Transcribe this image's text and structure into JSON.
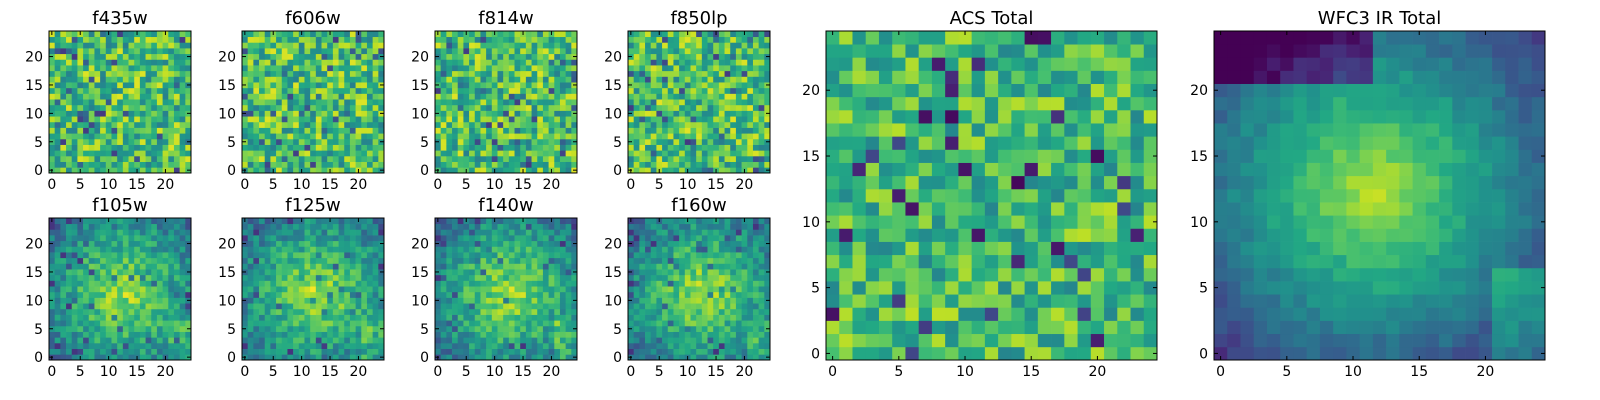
{
  "figure": {
    "background": "#ffffff",
    "colormap": "viridis"
  },
  "chart_data": [
    {
      "type": "heatmap",
      "title": "f435w",
      "grid_size": 25,
      "xlim": [
        0,
        24
      ],
      "ylim": [
        0,
        24
      ],
      "xticks": [
        0,
        5,
        10,
        15,
        20
      ],
      "yticks": [
        0,
        5,
        10,
        15,
        20
      ],
      "pattern": "noise",
      "seed": 11,
      "color_range": [
        0.12,
        1.0
      ]
    },
    {
      "type": "heatmap",
      "title": "f606w",
      "grid_size": 25,
      "xlim": [
        0,
        24
      ],
      "ylim": [
        0,
        24
      ],
      "xticks": [
        0,
        5,
        10,
        15,
        20
      ],
      "yticks": [
        0,
        5,
        10,
        15,
        20
      ],
      "pattern": "noise",
      "seed": 23,
      "color_range": [
        0.12,
        1.0
      ]
    },
    {
      "type": "heatmap",
      "title": "f814w",
      "grid_size": 25,
      "xlim": [
        0,
        24
      ],
      "ylim": [
        0,
        24
      ],
      "xticks": [
        0,
        5,
        10,
        15,
        20
      ],
      "yticks": [
        0,
        5,
        10,
        15,
        20
      ],
      "pattern": "noise",
      "seed": 37,
      "color_range": [
        0.12,
        1.0
      ]
    },
    {
      "type": "heatmap",
      "title": "f850lp",
      "grid_size": 25,
      "xlim": [
        0,
        24
      ],
      "ylim": [
        0,
        24
      ],
      "xticks": [
        0,
        5,
        10,
        15,
        20
      ],
      "yticks": [
        0,
        5,
        10,
        15,
        20
      ],
      "pattern": "noise",
      "seed": 41,
      "color_range": [
        0.12,
        1.0
      ]
    },
    {
      "type": "heatmap",
      "title": "f105w",
      "grid_size": 25,
      "xlim": [
        0,
        24
      ],
      "ylim": [
        0,
        24
      ],
      "xticks": [
        0,
        5,
        10,
        15,
        20
      ],
      "yticks": [
        0,
        5,
        10,
        15,
        20
      ],
      "pattern": "blob",
      "seed": 53,
      "color_range": [
        0.15,
        1.0
      ]
    },
    {
      "type": "heatmap",
      "title": "f125w",
      "grid_size": 25,
      "xlim": [
        0,
        24
      ],
      "ylim": [
        0,
        24
      ],
      "xticks": [
        0,
        5,
        10,
        15,
        20
      ],
      "yticks": [
        0,
        5,
        10,
        15,
        20
      ],
      "pattern": "blob",
      "seed": 67,
      "color_range": [
        0.15,
        1.0
      ]
    },
    {
      "type": "heatmap",
      "title": "f140w",
      "grid_size": 25,
      "xlim": [
        0,
        24
      ],
      "ylim": [
        0,
        24
      ],
      "xticks": [
        0,
        5,
        10,
        15,
        20
      ],
      "yticks": [
        0,
        5,
        10,
        15,
        20
      ],
      "pattern": "blob",
      "seed": 79,
      "color_range": [
        0.15,
        1.0
      ]
    },
    {
      "type": "heatmap",
      "title": "f160w",
      "grid_size": 25,
      "xlim": [
        0,
        24
      ],
      "ylim": [
        0,
        24
      ],
      "xticks": [
        0,
        5,
        10,
        15,
        20
      ],
      "yticks": [
        0,
        5,
        10,
        15,
        20
      ],
      "pattern": "blob",
      "seed": 83,
      "color_range": [
        0.15,
        1.0
      ]
    },
    {
      "type": "heatmap",
      "title": "ACS Total",
      "grid_size": 25,
      "xlim": [
        0,
        24
      ],
      "ylim": [
        0,
        24
      ],
      "xticks": [
        0,
        5,
        10,
        15,
        20
      ],
      "yticks": [
        0,
        5,
        10,
        15,
        20
      ],
      "pattern": "patchy",
      "seed": 97,
      "color_range": [
        0.0,
        1.0
      ]
    },
    {
      "type": "heatmap",
      "title": "WFC3 IR Total",
      "grid_size": 25,
      "xlim": [
        0,
        24
      ],
      "ylim": [
        0,
        24
      ],
      "xticks": [
        0,
        5,
        10,
        15,
        20
      ],
      "yticks": [
        0,
        5,
        10,
        15,
        20
      ],
      "pattern": "smooth",
      "seed": 101,
      "color_range": [
        0.0,
        1.0
      ]
    }
  ]
}
